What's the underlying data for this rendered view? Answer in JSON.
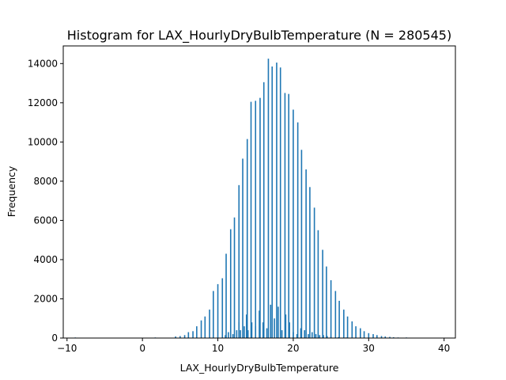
{
  "chart_data": {
    "type": "bar",
    "title": "Histogram for LAX_HourlyDryBulbTemperature (N = 280545)",
    "xlabel": "LAX_HourlyDryBulbTemperature",
    "ylabel": "Frequency",
    "xlim": [
      -10.5,
      41.5
    ],
    "ylim": [
      0,
      14900
    ],
    "xticks": [
      -10,
      0,
      10,
      20,
      30,
      40
    ],
    "yticks": [
      0,
      2000,
      4000,
      6000,
      8000,
      10000,
      12000,
      14000
    ],
    "xtick_labels": [
      "−10",
      "0",
      "10",
      "20",
      "30",
      "40"
    ],
    "ytick_labels": [
      "0",
      "2000",
      "4000",
      "6000",
      "8000",
      "10000",
      "12000",
      "14000"
    ],
    "bar_color": "#1f77b4",
    "grid": false,
    "legend": "none",
    "x": [
      -8.9,
      -7.2,
      0.6,
      1.7,
      2.8,
      4.4,
      5.0,
      5.6,
      6.1,
      6.7,
      7.2,
      7.8,
      8.3,
      8.9,
      9.4,
      10.0,
      10.6,
      11.1,
      11.7,
      12.2,
      12.8,
      13.3,
      13.9,
      14.4,
      15.0,
      15.6,
      16.1,
      16.7,
      17.2,
      17.8,
      18.3,
      18.9,
      19.4,
      20.0,
      20.6,
      21.1,
      21.7,
      22.2,
      22.8,
      23.3,
      23.9,
      24.4,
      25.0,
      25.6,
      26.1,
      26.7,
      27.2,
      27.8,
      28.3,
      28.9,
      29.4,
      30.0,
      30.6,
      31.1,
      31.7,
      32.2,
      32.8,
      33.3,
      33.9,
      34.4,
      35.0,
      36.1,
      37.2,
      38.9,
      11.0,
      11.4,
      12.0,
      12.5,
      12.8,
      13.0,
      13.5,
      13.8,
      14.0,
      14.5,
      15.0,
      15.5,
      16.0,
      16.5,
      17.0,
      17.5,
      18.0,
      18.5,
      19.0,
      19.5,
      20.0,
      20.5,
      21.0,
      21.5,
      22.0,
      22.5,
      23.0,
      23.5,
      24.0,
      24.5,
      25.0,
      26.0,
      27.0
    ],
    "values": [
      30,
      20,
      20,
      30,
      20,
      80,
      100,
      150,
      300,
      350,
      600,
      900,
      1100,
      1450,
      2400,
      2750,
      3050,
      4300,
      5550,
      6150,
      7800,
      9150,
      10150,
      12050,
      12100,
      12250,
      13050,
      14250,
      13850,
      14050,
      13800,
      12500,
      12450,
      11650,
      11000,
      9600,
      8600,
      7700,
      6650,
      5500,
      4500,
      3650,
      2950,
      2400,
      1900,
      1450,
      1100,
      850,
      600,
      500,
      350,
      250,
      200,
      150,
      100,
      80,
      60,
      40,
      30,
      20,
      30,
      20,
      20,
      20,
      150,
      300,
      200,
      400,
      800,
      400,
      600,
      1200,
      400,
      800,
      600,
      1400,
      800,
      500,
      1700,
      1000,
      1600,
      400,
      1200,
      800,
      300,
      200,
      500,
      400,
      200,
      300,
      200,
      150,
      150,
      100,
      100,
      50,
      30
    ]
  }
}
